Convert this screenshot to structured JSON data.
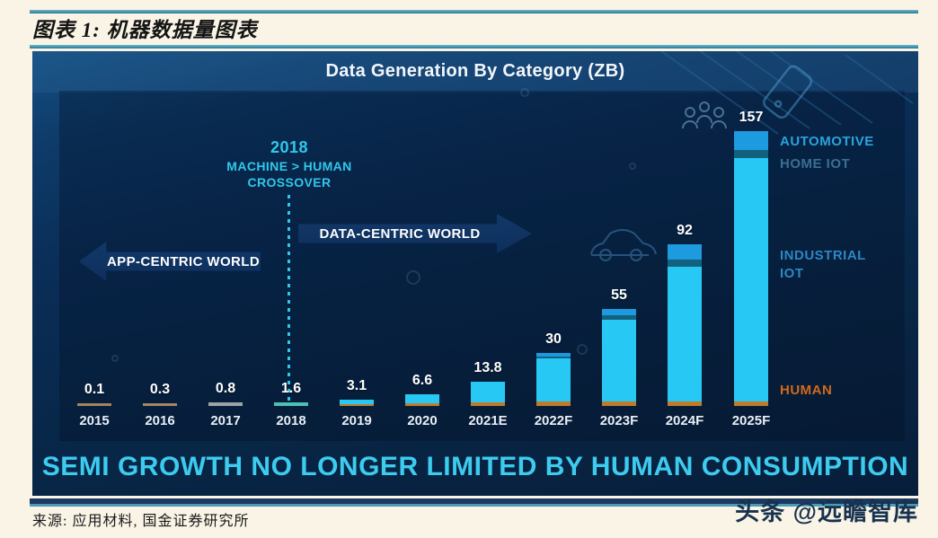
{
  "header": {
    "title": "图表 1: 机器数据量图表"
  },
  "footer": {
    "source": "来源: 应用材料, 国金证券研究所",
    "watermark": "头条 @远瞻智库"
  },
  "colors": {
    "page_background": "#faf4e6",
    "rule_teal": "#4a9cb5",
    "rule_navy": "#1c3a60",
    "chart_background_top": "#0f3d68",
    "chart_background_bottom": "#071e3a",
    "accent_cyan": "#2fc8ec",
    "banner_cyan": "#3dcbf0",
    "bar_industrial_iot": "#27c9f4",
    "bar_automotive": "#1e9ae0",
    "bar_home_iot": "#12617f",
    "bar_human": "#c07a2c",
    "legend_automotive": "#2aa3dc",
    "legend_home_iot": "#3b6e93",
    "legend_industrial_iot": "#2e86c4",
    "legend_human": "#d2691e"
  },
  "chart": {
    "title": "Data Generation By Category (ZB)",
    "banner": "SEMI GROWTH NO LONGER LIMITED BY HUMAN CONSUMPTION",
    "annotation": {
      "year": "2018",
      "line1": "MACHINE > HUMAN",
      "line2": "CROSSOVER"
    },
    "arrow_left": "APP-CENTRIC WORLD",
    "arrow_right": "DATA-CENTRIC WORLD",
    "legend": {
      "automotive": "AUTOMOTIVE",
      "home_iot": "HOME IOT",
      "industrial_iot": "INDUSTRIAL IOT",
      "human": "HUMAN"
    }
  },
  "chart_data": {
    "type": "bar",
    "stacked": true,
    "title": "Data Generation By Category (ZB)",
    "unit": "ZB",
    "categories": [
      "2015",
      "2016",
      "2017",
      "2018",
      "2019",
      "2020",
      "2021E",
      "2022F",
      "2023F",
      "2024F",
      "2025F"
    ],
    "values": [
      0.1,
      0.3,
      0.8,
      1.6,
      3.1,
      6.6,
      13.8,
      30,
      55,
      92,
      157
    ],
    "value_labels": [
      "0.1",
      "0.3",
      "0.8",
      "1.6",
      "3.1",
      "6.6",
      "13.8",
      "30",
      "55",
      "92",
      "157"
    ],
    "stack_order_bottom_to_top": [
      "HUMAN",
      "INDUSTRIAL IOT",
      "HOME IOT",
      "AUTOMOTIVE"
    ],
    "legend_position": "right",
    "annotations": [
      "2018 MACHINE > HUMAN CROSSOVER",
      "APP-CENTRIC WORLD",
      "DATA-CENTRIC WORLD"
    ],
    "bars_render": [
      {
        "label": "2015",
        "center": 69,
        "segments": [
          [
            "#a8825a",
            3
          ]
        ]
      },
      {
        "label": "2016",
        "center": 142,
        "segments": [
          [
            "#aa855f",
            3
          ]
        ]
      },
      {
        "label": "2017",
        "center": 215,
        "segments": [
          [
            "#9aa4a4",
            4
          ]
        ]
      },
      {
        "label": "2018",
        "center": 288,
        "segments": [
          [
            "#4cc0b4",
            4
          ]
        ]
      },
      {
        "label": "2019",
        "center": 361,
        "segments": [
          [
            "#c07a2c",
            2
          ],
          [
            "#27c9f4",
            5
          ]
        ]
      },
      {
        "label": "2020",
        "center": 434,
        "segments": [
          [
            "#c07a2c",
            3
          ],
          [
            "#27c9f4",
            10
          ]
        ]
      },
      {
        "label": "2021E",
        "center": 507,
        "segments": [
          [
            "#c07a2c",
            4
          ],
          [
            "#27c9f4",
            23
          ]
        ]
      },
      {
        "label": "2022F",
        "center": 580,
        "segments": [
          [
            "#c07a2c",
            5
          ],
          [
            "#27c9f4",
            48
          ],
          [
            "#12617f",
            2
          ],
          [
            "#1e9ae0",
            4
          ]
        ]
      },
      {
        "label": "2023F",
        "center": 653,
        "segments": [
          [
            "#c07a2c",
            5
          ],
          [
            "#27c9f4",
            91
          ],
          [
            "#12617f",
            5
          ],
          [
            "#1e9ae0",
            7
          ]
        ]
      },
      {
        "label": "2024F",
        "center": 726,
        "segments": [
          [
            "#c07a2c",
            5
          ],
          [
            "#27c9f4",
            150
          ],
          [
            "#12617f",
            8
          ],
          [
            "#1e9ae0",
            17
          ]
        ]
      },
      {
        "label": "2025F",
        "center": 800,
        "segments": [
          [
            "#c07a2c",
            5
          ],
          [
            "#27c9f4",
            271
          ],
          [
            "#12617f",
            9
          ],
          [
            "#1e9ae0",
            21
          ]
        ]
      }
    ]
  }
}
